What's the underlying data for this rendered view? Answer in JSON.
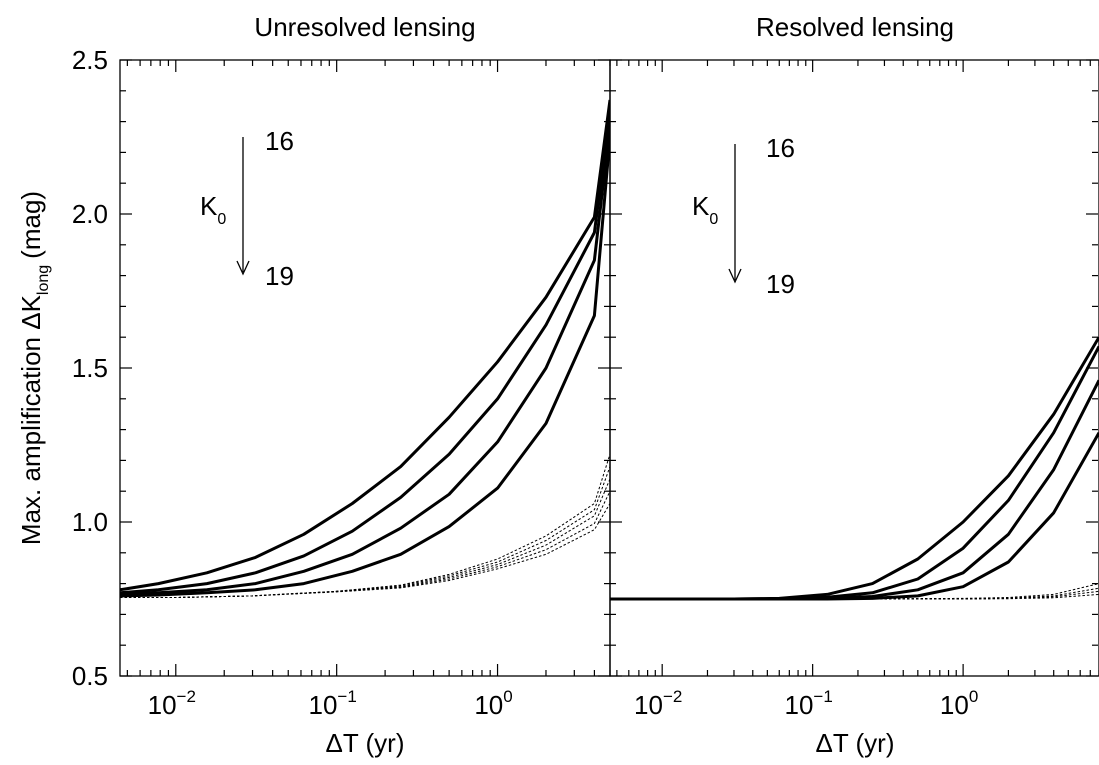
{
  "chart_data": [
    {
      "type": "line",
      "title": "Unresolved lensing",
      "xlabel": "ΔT (yr)",
      "ylabel": "Max. amplification ΔK",
      "ylabel_sub": "long",
      "ylabel_unit": "(mag)",
      "x_scale": "log",
      "xlim": [
        0.0045,
        5.0
      ],
      "ylim": [
        0.5,
        2.5
      ],
      "x_ticks": [
        {
          "value": 0.01,
          "base": "10",
          "exp": "−2"
        },
        {
          "value": 0.1,
          "base": "10",
          "exp": "−1"
        },
        {
          "value": 1,
          "base": "10",
          "exp": "0"
        }
      ],
      "y_ticks": [
        "0.5",
        "1.0",
        "1.5",
        "2.0",
        "2.5"
      ],
      "y_tick_values": [
        0.5,
        1.0,
        1.5,
        2.0,
        2.5
      ],
      "annotation": {
        "label": "K",
        "sub": "0",
        "top": "16",
        "bottom": "19"
      },
      "solid_series": [
        {
          "x": [
            0.0045,
            0.0078,
            0.0156,
            0.0313,
            0.0625,
            0.125,
            0.25,
            0.5,
            1,
            2,
            4,
            5
          ],
          "y": [
            0.78,
            0.8,
            0.835,
            0.885,
            0.96,
            1.06,
            1.18,
            1.34,
            1.52,
            1.73,
            1.99,
            2.37
          ]
        },
        {
          "x": [
            0.0045,
            0.0078,
            0.0156,
            0.0313,
            0.0625,
            0.125,
            0.25,
            0.5,
            1,
            2,
            4,
            5
          ],
          "y": [
            0.77,
            0.78,
            0.8,
            0.835,
            0.89,
            0.97,
            1.08,
            1.22,
            1.4,
            1.64,
            1.94,
            2.33
          ]
        },
        {
          "x": [
            0.0045,
            0.0078,
            0.0156,
            0.0313,
            0.0625,
            0.125,
            0.25,
            0.5,
            1,
            2,
            4,
            5
          ],
          "y": [
            0.765,
            0.77,
            0.78,
            0.8,
            0.84,
            0.895,
            0.98,
            1.09,
            1.26,
            1.5,
            1.85,
            2.29
          ]
        },
        {
          "x": [
            0.0045,
            0.0078,
            0.0156,
            0.0313,
            0.0625,
            0.125,
            0.25,
            0.5,
            1,
            2,
            4,
            5
          ],
          "y": [
            0.76,
            0.763,
            0.77,
            0.78,
            0.8,
            0.84,
            0.895,
            0.985,
            1.11,
            1.32,
            1.67,
            2.25
          ]
        }
      ],
      "dotted_series": [
        {
          "x": [
            0.0045,
            0.01,
            0.03,
            0.1,
            0.25,
            0.5,
            1,
            2,
            4,
            5
          ],
          "y": [
            0.755,
            0.755,
            0.76,
            0.775,
            0.795,
            0.83,
            0.88,
            0.955,
            1.06,
            1.22
          ]
        },
        {
          "x": [
            0.0045,
            0.01,
            0.03,
            0.1,
            0.25,
            0.5,
            1,
            2,
            4,
            5
          ],
          "y": [
            0.755,
            0.755,
            0.76,
            0.775,
            0.793,
            0.825,
            0.87,
            0.94,
            1.04,
            1.18
          ]
        },
        {
          "x": [
            0.0045,
            0.01,
            0.03,
            0.1,
            0.25,
            0.5,
            1,
            2,
            4,
            5
          ],
          "y": [
            0.755,
            0.755,
            0.76,
            0.775,
            0.79,
            0.82,
            0.862,
            0.925,
            1.02,
            1.14
          ]
        },
        {
          "x": [
            0.0045,
            0.01,
            0.03,
            0.1,
            0.25,
            0.5,
            1,
            2,
            4,
            5
          ],
          "y": [
            0.755,
            0.755,
            0.76,
            0.774,
            0.788,
            0.815,
            0.855,
            0.91,
            0.995,
            1.1
          ]
        },
        {
          "x": [
            0.0045,
            0.01,
            0.03,
            0.1,
            0.25,
            0.5,
            1,
            2,
            4,
            5
          ],
          "y": [
            0.755,
            0.755,
            0.76,
            0.773,
            0.786,
            0.81,
            0.848,
            0.895,
            0.975,
            1.06
          ]
        }
      ]
    },
    {
      "type": "line",
      "title": "Resolved lensing",
      "xlabel": "ΔT (yr)",
      "x_scale": "log",
      "xlim": [
        0.0045,
        8.0
      ],
      "ylim": [
        0.5,
        2.5
      ],
      "x_ticks": [
        {
          "value": 0.01,
          "base": "10",
          "exp": "−2"
        },
        {
          "value": 0.1,
          "base": "10",
          "exp": "−1"
        },
        {
          "value": 1,
          "base": "10",
          "exp": "0"
        }
      ],
      "annotation": {
        "label": "K",
        "sub": "0",
        "top": "16",
        "bottom": "19"
      },
      "solid_series": [
        {
          "x": [
            0.0045,
            0.01,
            0.03,
            0.06,
            0.125,
            0.25,
            0.5,
            1,
            2,
            4,
            8
          ],
          "y": [
            0.75,
            0.75,
            0.75,
            0.752,
            0.765,
            0.8,
            0.88,
            1.0,
            1.15,
            1.35,
            1.6
          ]
        },
        {
          "x": [
            0.0045,
            0.01,
            0.03,
            0.06,
            0.125,
            0.25,
            0.5,
            1,
            2,
            4,
            8
          ],
          "y": [
            0.75,
            0.75,
            0.75,
            0.751,
            0.756,
            0.77,
            0.815,
            0.915,
            1.07,
            1.29,
            1.57
          ]
        },
        {
          "x": [
            0.0045,
            0.01,
            0.03,
            0.06,
            0.125,
            0.25,
            0.5,
            1,
            2,
            4,
            8
          ],
          "y": [
            0.75,
            0.75,
            0.75,
            0.75,
            0.752,
            0.758,
            0.78,
            0.835,
            0.96,
            1.17,
            1.46
          ]
        },
        {
          "x": [
            0.0045,
            0.01,
            0.03,
            0.06,
            0.125,
            0.25,
            0.5,
            1,
            2,
            4,
            8
          ],
          "y": [
            0.75,
            0.75,
            0.75,
            0.75,
            0.75,
            0.752,
            0.76,
            0.79,
            0.87,
            1.03,
            1.29
          ]
        }
      ],
      "dotted_series": [
        {
          "x": [
            0.0045,
            0.1,
            1,
            2,
            4,
            8
          ],
          "y": [
            0.75,
            0.75,
            0.752,
            0.755,
            0.765,
            0.8
          ]
        },
        {
          "x": [
            0.0045,
            0.1,
            1,
            2,
            4,
            8
          ],
          "y": [
            0.75,
            0.75,
            0.751,
            0.753,
            0.76,
            0.785
          ]
        },
        {
          "x": [
            0.0045,
            0.1,
            1,
            2,
            4,
            8
          ],
          "y": [
            0.75,
            0.75,
            0.75,
            0.752,
            0.757,
            0.775
          ]
        },
        {
          "x": [
            0.0045,
            0.1,
            1,
            2,
            4,
            8
          ],
          "y": [
            0.75,
            0.75,
            0.75,
            0.751,
            0.754,
            0.765
          ]
        }
      ]
    }
  ]
}
